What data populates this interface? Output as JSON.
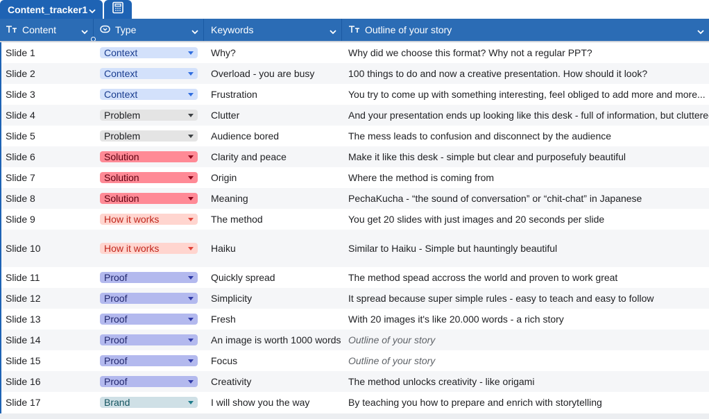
{
  "tab": {
    "title": "Content_tracker1"
  },
  "columns": [
    {
      "label": "Content",
      "icon": "text-type-icon"
    },
    {
      "label": "Type",
      "icon": "dropdown-type-icon"
    },
    {
      "label": "Keywords",
      "icon": ""
    },
    {
      "label": "Outline of your story",
      "icon": "text-type-icon"
    }
  ],
  "type_styles": {
    "Context": {
      "bg": "#d3e1fb",
      "text": "#1a3d8f",
      "arrow": "#2f6de0"
    },
    "Problem": {
      "bg": "#e4e4e4",
      "text": "#202124",
      "arrow": "#3c4043"
    },
    "Solution": {
      "bg": "#ff8a96",
      "text": "#5c0010",
      "arrow": "#8a0016"
    },
    "How it works": {
      "bg": "#ffd5cf",
      "text": "#c0271d",
      "arrow": "#e0443a"
    },
    "Proof": {
      "bg": "#b3b9ee",
      "text": "#22286e",
      "arrow": "#2f3aa6"
    },
    "Brand": {
      "bg": "#cfe0e6",
      "text": "#14545f",
      "arrow": "#1f7d8c"
    }
  },
  "rows": [
    {
      "content": "Slide 1",
      "type": "Context",
      "keywords": "Why?",
      "outline": "Why did we choose this format? Why not a regular PPT?",
      "placeholder": false
    },
    {
      "content": "Slide 2",
      "type": "Context",
      "keywords": "Overload - you are busy",
      "outline": "100 things to do and now a creative presentation. How should it look?",
      "placeholder": false
    },
    {
      "content": "Slide 3",
      "type": "Context",
      "keywords": "Frustration",
      "outline": "You try to come up with something interesting, feel obliged to add more and more...",
      "placeholder": false
    },
    {
      "content": "Slide 4",
      "type": "Problem",
      "keywords": "Clutter",
      "outline": "And your presentation ends up looking like this desk - full of information, but cluttered.",
      "placeholder": false
    },
    {
      "content": "Slide 5",
      "type": "Problem",
      "keywords": "Audience bored",
      "outline": "The mess leads to confusion and disconnect by the audience",
      "placeholder": false
    },
    {
      "content": "Slide 6",
      "type": "Solution",
      "keywords": "Clarity and peace",
      "outline": "Make it like this desk - simple but clear and purposefuly beautiful",
      "placeholder": false
    },
    {
      "content": "Slide 7",
      "type": "Solution",
      "keywords": "Origin",
      "outline": "Where the method is coming from",
      "placeholder": false
    },
    {
      "content": "Slide 8",
      "type": "Solution",
      "keywords": "Meaning",
      "outline": "PechaKucha - “the sound of conversation” or “chit-chat” in Japanese",
      "placeholder": false
    },
    {
      "content": "Slide 9",
      "type": "How it works",
      "keywords": "The method",
      "outline": "You get 20 slides with just images and 20 seconds per slide",
      "placeholder": false
    },
    {
      "content": "Slide 10",
      "type": "How it works",
      "keywords": "Haiku",
      "outline": "Similar to Haiku - Simple but hauntingly beautiful",
      "placeholder": false
    },
    {
      "content": "Slide 11",
      "type": "Proof",
      "keywords": "Quickly spread",
      "outline": "The method spead accross the world and proven to work great",
      "placeholder": false
    },
    {
      "content": "Slide 12",
      "type": "Proof",
      "keywords": "Simplicity",
      "outline": "It spread because super simple rules - easy to teach and easy to follow",
      "placeholder": false
    },
    {
      "content": "Slide 13",
      "type": "Proof",
      "keywords": "Fresh",
      "outline": "With 20 images it's like 20.000 words - a rich story",
      "placeholder": false
    },
    {
      "content": "Slide 14",
      "type": "Proof",
      "keywords": "An image is worth 1000 words",
      "outline": "Outline of your story",
      "placeholder": true
    },
    {
      "content": "Slide 15",
      "type": "Proof",
      "keywords": "Focus",
      "outline": "Outline of your story",
      "placeholder": true
    },
    {
      "content": "Slide 16",
      "type": "Proof",
      "keywords": "Creativity",
      "outline": "The method unlocks creativity - like origami",
      "placeholder": false
    },
    {
      "content": "Slide 17",
      "type": "Brand",
      "keywords": "I will show you the way",
      "outline": "By teaching you how to prepare and enrich with storytelling",
      "placeholder": false
    }
  ]
}
